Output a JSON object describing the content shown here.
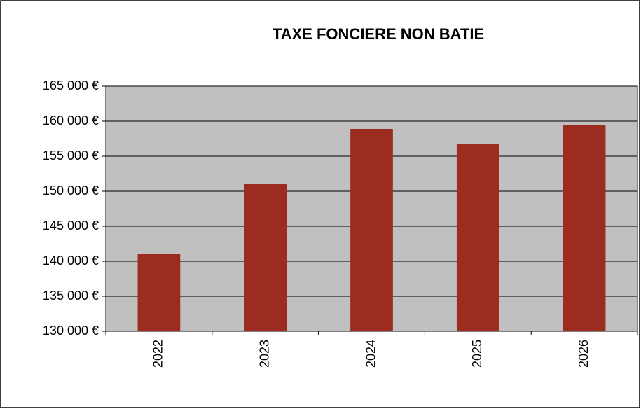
{
  "chart_data": {
    "type": "bar",
    "title": "TAXE FONCIERE NON BATIE",
    "categories": [
      "2022",
      "2023",
      "2024",
      "2025",
      "2026"
    ],
    "values": [
      141000,
      151000,
      158900,
      156800,
      159500
    ],
    "color": "#9c2b20",
    "ylim": [
      130000,
      165000
    ],
    "yticks": [
      {
        "value": 130000,
        "label": "130 000 €"
      },
      {
        "value": 135000,
        "label": "135 000 €"
      },
      {
        "value": 140000,
        "label": "140 000 €"
      },
      {
        "value": 145000,
        "label": "145 000 €"
      },
      {
        "value": 150000,
        "label": "150 000 €"
      },
      {
        "value": 155000,
        "label": "155 000 €"
      },
      {
        "value": 160000,
        "label": "160 000 €"
      },
      {
        "value": 165000,
        "label": "165 000 €"
      }
    ],
    "grid": true
  }
}
